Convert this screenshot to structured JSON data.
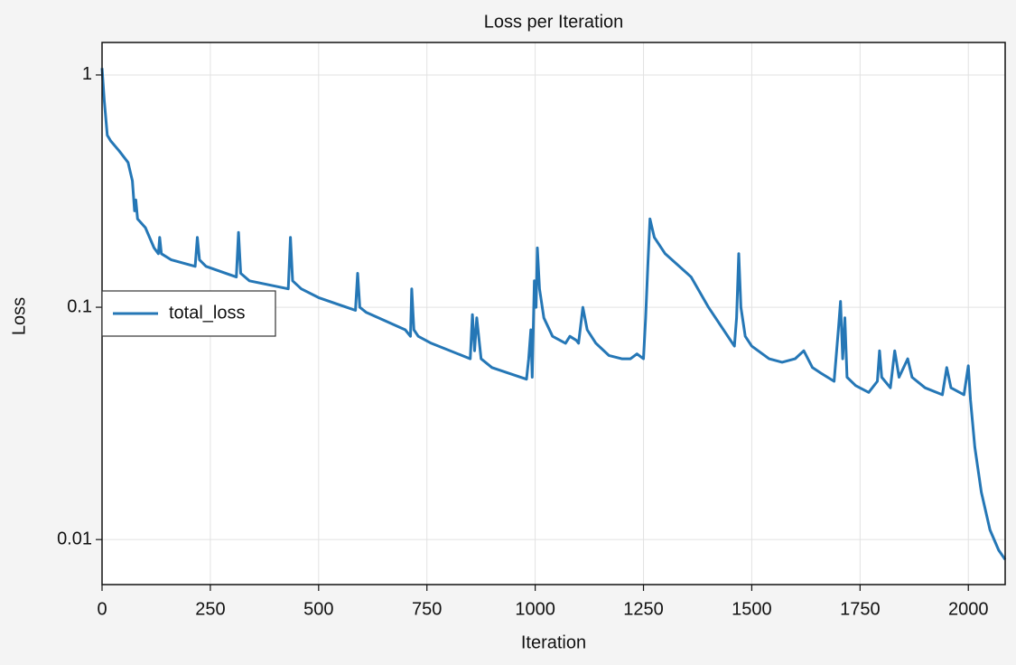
{
  "chart_data": {
    "type": "line",
    "title": "Loss per Iteration",
    "x_label": "Iteration",
    "y_label": "Loss",
    "x": [
      0,
      5,
      12,
      20,
      40,
      60,
      70,
      75,
      78,
      82,
      100,
      120,
      130,
      133,
      137,
      160,
      215,
      220,
      225,
      240,
      310,
      315,
      320,
      340,
      430,
      435,
      440,
      460,
      500,
      585,
      590,
      595,
      610,
      700,
      712,
      715,
      720,
      730,
      760,
      850,
      855,
      860,
      865,
      875,
      900,
      980,
      985,
      990,
      993,
      998,
      1002,
      1005,
      1010,
      1020,
      1040,
      1070,
      1080,
      1095,
      1100,
      1110,
      1120,
      1140,
      1170,
      1200,
      1220,
      1235,
      1250,
      1255,
      1260,
      1265,
      1275,
      1300,
      1360,
      1400,
      1460,
      1465,
      1470,
      1475,
      1485,
      1500,
      1540,
      1570,
      1600,
      1620,
      1640,
      1660,
      1690,
      1700,
      1705,
      1710,
      1715,
      1720,
      1740,
      1770,
      1790,
      1795,
      1800,
      1820,
      1830,
      1840,
      1860,
      1870,
      1900,
      1940,
      1950,
      1960,
      1990,
      2000,
      2005,
      2015,
      2030,
      2050,
      2070,
      2085
    ],
    "series": [
      {
        "name": "total_loss",
        "color": "#2577b6",
        "values": [
          1.07,
          0.78,
          0.55,
          0.52,
          0.47,
          0.42,
          0.35,
          0.26,
          0.29,
          0.24,
          0.22,
          0.18,
          0.17,
          0.2,
          0.17,
          0.16,
          0.15,
          0.2,
          0.16,
          0.15,
          0.135,
          0.21,
          0.14,
          0.13,
          0.12,
          0.2,
          0.13,
          0.12,
          0.11,
          0.097,
          0.14,
          0.1,
          0.095,
          0.08,
          0.075,
          0.12,
          0.08,
          0.075,
          0.07,
          0.06,
          0.093,
          0.065,
          0.09,
          0.06,
          0.055,
          0.049,
          0.06,
          0.08,
          0.05,
          0.13,
          0.1,
          0.18,
          0.12,
          0.09,
          0.075,
          0.07,
          0.075,
          0.072,
          0.07,
          0.1,
          0.08,
          0.07,
          0.062,
          0.06,
          0.06,
          0.063,
          0.06,
          0.09,
          0.15,
          0.24,
          0.2,
          0.17,
          0.135,
          0.1,
          0.068,
          0.09,
          0.17,
          0.1,
          0.075,
          0.068,
          0.06,
          0.058,
          0.06,
          0.065,
          0.055,
          0.052,
          0.048,
          0.08,
          0.106,
          0.06,
          0.09,
          0.05,
          0.046,
          0.043,
          0.048,
          0.065,
          0.05,
          0.045,
          0.065,
          0.05,
          0.06,
          0.05,
          0.045,
          0.042,
          0.055,
          0.045,
          0.042,
          0.056,
          0.04,
          0.025,
          0.016,
          0.011,
          0.009,
          0.0082
        ]
      }
    ],
    "xlim": [
      0,
      2085
    ],
    "xticks": [
      0,
      250,
      500,
      750,
      1000,
      1250,
      1500,
      1750,
      2000
    ],
    "ylim": [
      0.0064,
      1.38
    ],
    "yticks": [
      0.01,
      0.1,
      1
    ],
    "y_scale": "log",
    "grid": true,
    "legend": "center left"
  }
}
